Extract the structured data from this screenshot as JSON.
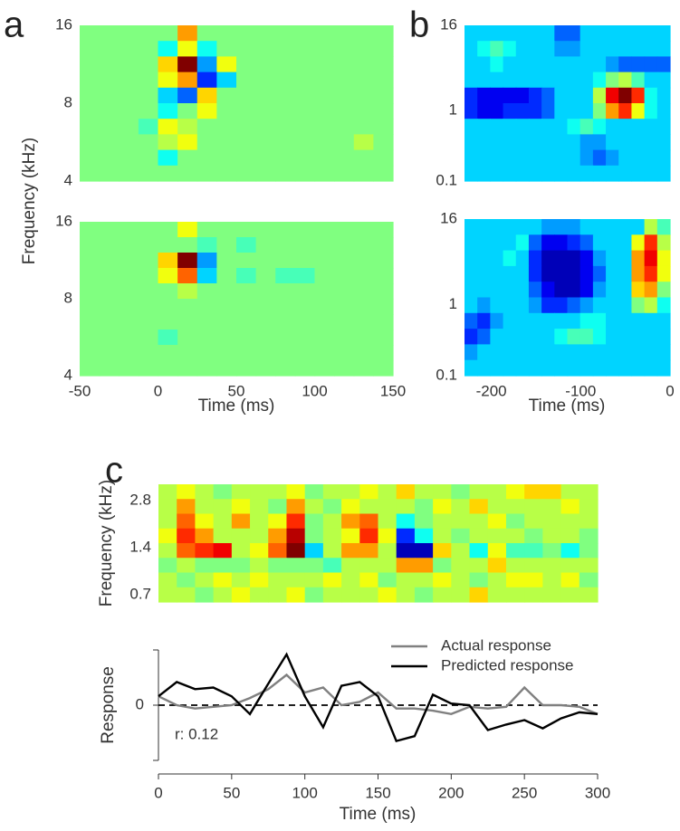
{
  "chart_data": [
    {
      "type": "heatmap",
      "panel": "a",
      "ylabel": "Frequency (kHz)",
      "colormap": "jet",
      "clim": [
        -9,
        9
      ],
      "xlim": [
        -50,
        150
      ],
      "ylim": [
        4,
        16
      ],
      "yscale": "log",
      "yticks": [
        4,
        8,
        16
      ],
      "z": [
        [
          0,
          0,
          0,
          0,
          0,
          4,
          0,
          0,
          0,
          0,
          0,
          0,
          0,
          0,
          0,
          0
        ],
        [
          0,
          0,
          0,
          0,
          -2,
          2,
          -2,
          0,
          0,
          0,
          0,
          0,
          0,
          0,
          0,
          0
        ],
        [
          0,
          0,
          0,
          0,
          3,
          9,
          -4,
          2,
          0,
          0,
          0,
          0,
          0,
          0,
          0,
          0
        ],
        [
          0,
          0,
          0,
          0,
          2,
          4,
          -6,
          -3,
          0,
          0,
          0,
          0,
          0,
          0,
          0,
          0
        ],
        [
          0,
          0,
          0,
          0,
          -3,
          -5,
          3,
          0,
          0,
          0,
          0,
          0,
          0,
          0,
          0,
          0
        ],
        [
          0,
          0,
          0,
          0,
          -2,
          0,
          2,
          0,
          0,
          0,
          0,
          0,
          0,
          0,
          0,
          0
        ],
        [
          0,
          0,
          0,
          -1,
          2,
          1,
          0,
          0,
          0,
          0,
          0,
          0,
          0,
          0,
          0,
          0
        ],
        [
          0,
          0,
          0,
          0,
          1,
          2,
          0,
          0,
          0,
          0,
          0,
          0,
          0,
          0,
          1,
          0
        ],
        [
          0,
          0,
          0,
          0,
          -2,
          0,
          0,
          0,
          0,
          0,
          0,
          0,
          0,
          0,
          0,
          0
        ],
        [
          0,
          0,
          0,
          0,
          0,
          0,
          0,
          0,
          0,
          0,
          0,
          0,
          0,
          0,
          0,
          0
        ]
      ]
    },
    {
      "type": "heatmap",
      "xlabel": "Time (ms)",
      "colormap": "jet",
      "clim": [
        -9,
        9
      ],
      "xlim": [
        -50,
        150
      ],
      "ylim": [
        4,
        16
      ],
      "yscale": "log",
      "yticks": [
        4,
        8,
        16
      ],
      "xticks": [
        -50,
        0,
        50,
        100,
        150
      ],
      "z": [
        [
          0,
          0,
          0,
          0,
          0,
          2,
          0,
          0,
          0,
          0,
          0,
          0,
          0,
          0,
          0,
          0
        ],
        [
          0,
          0,
          0,
          0,
          0,
          0,
          -1,
          0,
          -1,
          0,
          0,
          0,
          0,
          0,
          0,
          0
        ],
        [
          0,
          0,
          0,
          0,
          3,
          9,
          -4,
          0,
          0,
          0,
          0,
          0,
          0,
          0,
          0,
          0
        ],
        [
          0,
          0,
          0,
          0,
          2,
          5,
          -3,
          0,
          -1,
          0,
          -1,
          -1,
          0,
          0,
          0,
          0
        ],
        [
          0,
          0,
          0,
          0,
          0,
          1,
          0,
          0,
          0,
          0,
          0,
          0,
          0,
          0,
          0,
          0
        ],
        [
          0,
          0,
          0,
          0,
          0,
          0,
          0,
          0,
          0,
          0,
          0,
          0,
          0,
          0,
          0,
          0
        ],
        [
          0,
          0,
          0,
          0,
          0,
          0,
          0,
          0,
          0,
          0,
          0,
          0,
          0,
          0,
          0,
          0
        ],
        [
          0,
          0,
          0,
          0,
          -1,
          0,
          0,
          0,
          0,
          0,
          0,
          0,
          0,
          0,
          0,
          0
        ],
        [
          0,
          0,
          0,
          0,
          0,
          0,
          0,
          0,
          0,
          0,
          0,
          0,
          0,
          0,
          0,
          0
        ],
        [
          0,
          0,
          0,
          0,
          0,
          0,
          0,
          0,
          0,
          0,
          0,
          0,
          0,
          0,
          0,
          0
        ]
      ]
    },
    {
      "type": "heatmap",
      "panel": "b",
      "colormap": "jet",
      "clim": [
        -9,
        9
      ],
      "xlim": [
        -230,
        0
      ],
      "ylim": [
        0.1,
        16
      ],
      "yscale": "log",
      "yticks": [
        0.1,
        1,
        16
      ],
      "z": [
        [
          -3,
          -3,
          -3,
          -3,
          -3,
          -3,
          -3,
          -5,
          -5,
          -3,
          -3,
          -3,
          -3,
          -3,
          -3,
          -3
        ],
        [
          -3,
          -2,
          -1,
          -2,
          -3,
          -3,
          -3,
          -4,
          -4,
          -3,
          -3,
          -3,
          -3,
          -3,
          -3,
          -3
        ],
        [
          -3,
          -3,
          -2,
          -3,
          -3,
          -3,
          -3,
          -3,
          -3,
          -3,
          -3,
          -4,
          -5,
          -5,
          -5,
          -5
        ],
        [
          -3,
          -3,
          -3,
          -3,
          -3,
          -3,
          -3,
          -3,
          -3,
          -3,
          -2,
          0,
          1,
          -1,
          -3,
          -3
        ],
        [
          -6,
          -7,
          -7,
          -7,
          -7,
          -6,
          -5,
          -3,
          -3,
          -3,
          1,
          7,
          9,
          6,
          -2,
          -3
        ],
        [
          -6,
          -7,
          -7,
          -6,
          -6,
          -6,
          -5,
          -3,
          -3,
          -3,
          0,
          4,
          6,
          2,
          -2,
          -3
        ],
        [
          -3,
          -3,
          -3,
          -3,
          -3,
          -3,
          -3,
          -3,
          -2,
          -1,
          -2,
          -3,
          -3,
          -3,
          -3,
          -3
        ],
        [
          -3,
          -3,
          -3,
          -3,
          -3,
          -3,
          -3,
          -3,
          -3,
          -4,
          -4,
          -3,
          -3,
          -3,
          -3,
          -3
        ],
        [
          -3,
          -3,
          -3,
          -3,
          -3,
          -3,
          -3,
          -3,
          -3,
          -4,
          -5,
          -4,
          -3,
          -3,
          -3,
          -3
        ],
        [
          -3,
          -3,
          -3,
          -3,
          -3,
          -3,
          -3,
          -3,
          -3,
          -3,
          -3,
          -3,
          -3,
          -3,
          -3,
          -3
        ]
      ]
    },
    {
      "type": "heatmap",
      "xlabel": "Time (ms)",
      "colormap": "jet",
      "clim": [
        -9,
        9
      ],
      "xlim": [
        -230,
        0
      ],
      "ylim": [
        0.1,
        16
      ],
      "yscale": "log",
      "yticks": [
        0.1,
        1,
        16
      ],
      "xticks": [
        -200,
        -100,
        0
      ],
      "z": [
        [
          -3,
          -3,
          -3,
          -3,
          -3,
          -3,
          -4,
          -4,
          -4,
          -3,
          -3,
          -3,
          -3,
          -3,
          1,
          -1
        ],
        [
          -3,
          -3,
          -3,
          -3,
          -2,
          -5,
          -7,
          -7,
          -6,
          -5,
          -3,
          -3,
          -3,
          2,
          6,
          1
        ],
        [
          -3,
          -3,
          -3,
          -2,
          -3,
          -6,
          -8,
          -8,
          -8,
          -7,
          -4,
          -3,
          -3,
          4,
          7,
          2
        ],
        [
          -3,
          -3,
          -3,
          -3,
          -3,
          -6,
          -8,
          -8,
          -8,
          -7,
          -5,
          -3,
          -3,
          4,
          6,
          2
        ],
        [
          -3,
          -3,
          -3,
          -3,
          -3,
          -5,
          -7,
          -8,
          -8,
          -7,
          -4,
          -3,
          -3,
          3,
          4,
          0
        ],
        [
          -3,
          -4,
          -3,
          -3,
          -3,
          -4,
          -6,
          -6,
          -5,
          -4,
          -3,
          -3,
          -3,
          0,
          1,
          -2
        ],
        [
          -5,
          -6,
          -4,
          -3,
          -3,
          -3,
          -3,
          -3,
          -3,
          -2,
          -2,
          -3,
          -3,
          -3,
          -3,
          -3
        ],
        [
          -6,
          -5,
          -3,
          -3,
          -3,
          -3,
          -3,
          -2,
          -1,
          -1,
          -2,
          -3,
          -3,
          -3,
          -3,
          -3
        ],
        [
          -4,
          -3,
          -3,
          -3,
          -3,
          -3,
          -3,
          -3,
          -3,
          -3,
          -3,
          -3,
          -3,
          -3,
          -3,
          -3
        ],
        [
          -3,
          -3,
          -3,
          -3,
          -3,
          -3,
          -3,
          -3,
          -3,
          -3,
          -3,
          -3,
          -3,
          -3,
          -3,
          -3
        ]
      ]
    },
    {
      "type": "heatmap",
      "panel": "c",
      "ylabel": "Frequency (kHz)",
      "colormap": "jet",
      "clim": [
        -9,
        9
      ],
      "xlim": [
        0,
        300
      ],
      "ylim": [
        0.63,
        3.55
      ],
      "yscale": "log",
      "yticks": [
        0.7,
        1.4,
        2.8
      ],
      "z": [
        [
          1,
          2,
          1,
          0,
          1,
          1,
          1,
          2,
          0,
          1,
          1,
          2,
          1,
          3,
          1,
          1,
          0,
          1,
          1,
          2,
          3,
          3,
          1,
          1
        ],
        [
          1,
          4,
          1,
          1,
          2,
          1,
          0,
          4,
          1,
          0,
          2,
          1,
          1,
          1,
          0,
          2,
          1,
          3,
          1,
          1,
          1,
          1,
          2,
          1
        ],
        [
          1,
          5,
          2,
          1,
          4,
          1,
          2,
          6,
          0,
          1,
          4,
          5,
          1,
          -2,
          0,
          1,
          1,
          1,
          2,
          0,
          1,
          1,
          1,
          1
        ],
        [
          2,
          6,
          4,
          1,
          1,
          1,
          4,
          8,
          0,
          1,
          2,
          6,
          2,
          -6,
          -2,
          1,
          0,
          1,
          1,
          1,
          0,
          1,
          1,
          0
        ],
        [
          1,
          5,
          6,
          7,
          1,
          2,
          5,
          9,
          -3,
          1,
          4,
          4,
          1,
          -8,
          -8,
          3,
          1,
          -2,
          2,
          -1,
          -1,
          0,
          -2,
          0
        ],
        [
          0,
          1,
          0,
          0,
          0,
          1,
          0,
          0,
          0,
          -1,
          1,
          1,
          1,
          4,
          4,
          0,
          1,
          1,
          3,
          1,
          1,
          1,
          1,
          1
        ],
        [
          1,
          0,
          1,
          2,
          1,
          2,
          1,
          1,
          1,
          2,
          1,
          2,
          0,
          1,
          1,
          2,
          1,
          0,
          1,
          2,
          2,
          1,
          2,
          0
        ],
        [
          1,
          1,
          0,
          1,
          2,
          1,
          1,
          2,
          0,
          1,
          1,
          1,
          2,
          1,
          0,
          1,
          1,
          3,
          1,
          1,
          1,
          1,
          1,
          1
        ]
      ]
    },
    {
      "type": "line",
      "ylabel": "Response",
      "xlabel": "Time (ms)",
      "xlim": [
        0,
        300
      ],
      "ylim": [
        -1,
        1
      ],
      "xticks": [
        0,
        50,
        100,
        150,
        200,
        250,
        300
      ],
      "yticks": [
        0
      ],
      "hline": 0,
      "legend": "upper right",
      "annotation": "r: 0.12",
      "x": [
        0,
        12.5,
        25,
        37.5,
        50,
        62.5,
        75,
        87.5,
        100,
        112.5,
        125,
        137.5,
        150,
        162.5,
        175,
        187.5,
        200,
        212.5,
        225,
        237.5,
        250,
        262.5,
        275,
        287.5,
        300
      ],
      "series": [
        {
          "name": "Actual response",
          "color": "#808080",
          "values": [
            0.16,
            0,
            -0.06,
            -0.03,
            0,
            0.13,
            0.29,
            0.55,
            0.23,
            0.32,
            0,
            0.06,
            0.23,
            -0.06,
            -0.06,
            -0.1,
            -0.16,
            -0.03,
            -0.06,
            -0.03,
            0.32,
            0,
            0,
            -0.03,
            -0.16
          ]
        },
        {
          "name": "Predicted response",
          "color": "#000000",
          "values": [
            0.16,
            0.42,
            0.29,
            0.32,
            0.16,
            -0.16,
            0.39,
            0.92,
            0.16,
            -0.4,
            0.35,
            0.42,
            0.16,
            -0.65,
            -0.56,
            0.19,
            0.03,
            0,
            -0.45,
            -0.35,
            -0.27,
            -0.42,
            -0.24,
            -0.13,
            -0.16
          ]
        }
      ]
    }
  ]
}
